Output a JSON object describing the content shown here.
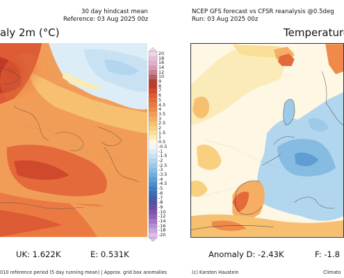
{
  "left_panel": {
    "header_line1": "30 day hindcast mean",
    "header_line2": "Reference: 03 Aug 2025 00z",
    "title": "aly 2m (°C)",
    "stat_uk": "UK: 1.622K",
    "stat_e": "E: 0.531K",
    "footer": "010 reference period (5 day running mean) | Approx. grid box anomalies"
  },
  "right_panel": {
    "header_line1": "NCEP GFS forecast vs CFSR reanalysis @0.5deg",
    "header_line2": "Run: 03 Aug 2025 00z",
    "title": "Temperature",
    "stat_d": "Anomaly D: -2.43K",
    "stat_f": "F: -1.8",
    "footer_left": "(c) Karsten Haustein",
    "footer_right": "Climato"
  },
  "colorbar": {
    "labels": [
      "20",
      "18",
      "16",
      "14",
      "12",
      "10",
      "9",
      "8",
      "7",
      "6",
      "5",
      "4.5",
      "4",
      "3.5",
      "3",
      "2.5",
      "2",
      "1.5",
      "1",
      "0.5",
      "-0.5",
      "-1",
      "-1.5",
      "-2",
      "-2.5",
      "-3",
      "-3.5",
      "-4",
      "-4.5",
      "-5",
      "-6",
      "-7",
      "-8",
      "-9",
      "-10",
      "-12",
      "-14",
      "-16",
      "-18",
      "-20"
    ],
    "colors": [
      "#f0d5e6",
      "#e4c0d8",
      "#dfb0c8",
      "#d69ab4",
      "#c9808f",
      "#b85f64",
      "#b0403a",
      "#c43a27",
      "#d1492c",
      "#dd5b35",
      "#e56a3b",
      "#ea7a42",
      "#ef8a4a",
      "#f29d57",
      "#f5ae64",
      "#f7c070",
      "#f8d080",
      "#f9df98",
      "#faebb8",
      "#fdf7e4",
      "#f0f6fb",
      "#dcedf7",
      "#c8e2f3",
      "#b2d6ee",
      "#9dcae8",
      "#87bce2",
      "#72addb",
      "#5f9dd2",
      "#4e8ec9",
      "#3f7fc0",
      "#3a6fb4",
      "#4060a8",
      "#5552a2",
      "#6a4fa3",
      "#7d55ad",
      "#9064b9",
      "#a378c6",
      "#b68ed3",
      "#c8a6e0",
      "#dac0ec"
    ]
  }
}
